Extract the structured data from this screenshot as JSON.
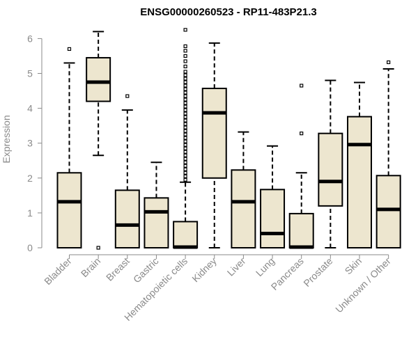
{
  "chart_data": {
    "type": "boxplot",
    "title": "ENSG00000260523 - RP11-483P21.3",
    "xlabel": "",
    "ylabel": "Expression",
    "ylim": [
      0,
      6.2
    ],
    "yticks": [
      0,
      1,
      2,
      3,
      4,
      5,
      6
    ],
    "box_fill": "#ede6cf",
    "box_stroke": "#000000",
    "axis_text_color": "#8a8a8a",
    "categories": [
      "Bladder",
      "Brain",
      "Breast",
      "Gastric",
      "Hematopoietic cells",
      "Kidney",
      "Liver",
      "Lung",
      "Pancreas",
      "Prostate",
      "Skin",
      "Unknown / Other"
    ],
    "boxes": [
      {
        "whislo": 0,
        "q1": 0,
        "med": 1.32,
        "q3": 2.15,
        "whishi": 5.3,
        "fliers": [
          5.7
        ]
      },
      {
        "whislo": 2.65,
        "q1": 4.2,
        "med": 4.75,
        "q3": 5.45,
        "whishi": 6.2,
        "fliers": [
          0
        ]
      },
      {
        "whislo": 0,
        "q1": 0,
        "med": 0.65,
        "q3": 1.65,
        "whishi": 3.95,
        "fliers": [
          4.35
        ]
      },
      {
        "whislo": 0,
        "q1": 0,
        "med": 1.03,
        "q3": 1.43,
        "whishi": 2.45,
        "fliers": []
      },
      {
        "whislo": 0,
        "q1": 0,
        "med": 0.02,
        "q3": 0.75,
        "whishi": 1.88,
        "fliers": [
          1.95,
          2.05,
          2.15,
          2.25,
          2.35,
          2.45,
          2.55,
          2.65,
          2.75,
          2.85,
          2.95,
          3.05,
          3.15,
          3.25,
          3.35,
          3.45,
          3.55,
          3.65,
          3.75,
          3.85,
          3.95,
          4.05,
          4.15,
          4.25,
          4.35,
          4.45,
          4.55,
          4.65,
          4.75,
          4.85,
          4.95,
          5.05,
          5.2,
          5.35,
          5.5,
          5.65,
          5.78,
          6.25
        ]
      },
      {
        "whislo": 0,
        "q1": 2.0,
        "med": 3.87,
        "q3": 4.57,
        "whishi": 5.87,
        "fliers": []
      },
      {
        "whislo": 0,
        "q1": 0,
        "med": 1.32,
        "q3": 2.23,
        "whishi": 3.32,
        "fliers": []
      },
      {
        "whislo": 0,
        "q1": 0,
        "med": 0.41,
        "q3": 1.67,
        "whishi": 2.92,
        "fliers": []
      },
      {
        "whislo": 0,
        "q1": 0,
        "med": 0.02,
        "q3": 0.98,
        "whishi": 2.15,
        "fliers": [
          3.28,
          4.65
        ]
      },
      {
        "whislo": 0,
        "q1": 1.2,
        "med": 1.9,
        "q3": 3.28,
        "whishi": 4.8,
        "fliers": []
      },
      {
        "whislo": 0,
        "q1": 0,
        "med": 2.96,
        "q3": 3.76,
        "whishi": 4.74,
        "fliers": []
      },
      {
        "whislo": 0,
        "q1": 0,
        "med": 1.1,
        "q3": 2.07,
        "whishi": 5.13,
        "fliers": [
          5.32
        ]
      }
    ]
  }
}
